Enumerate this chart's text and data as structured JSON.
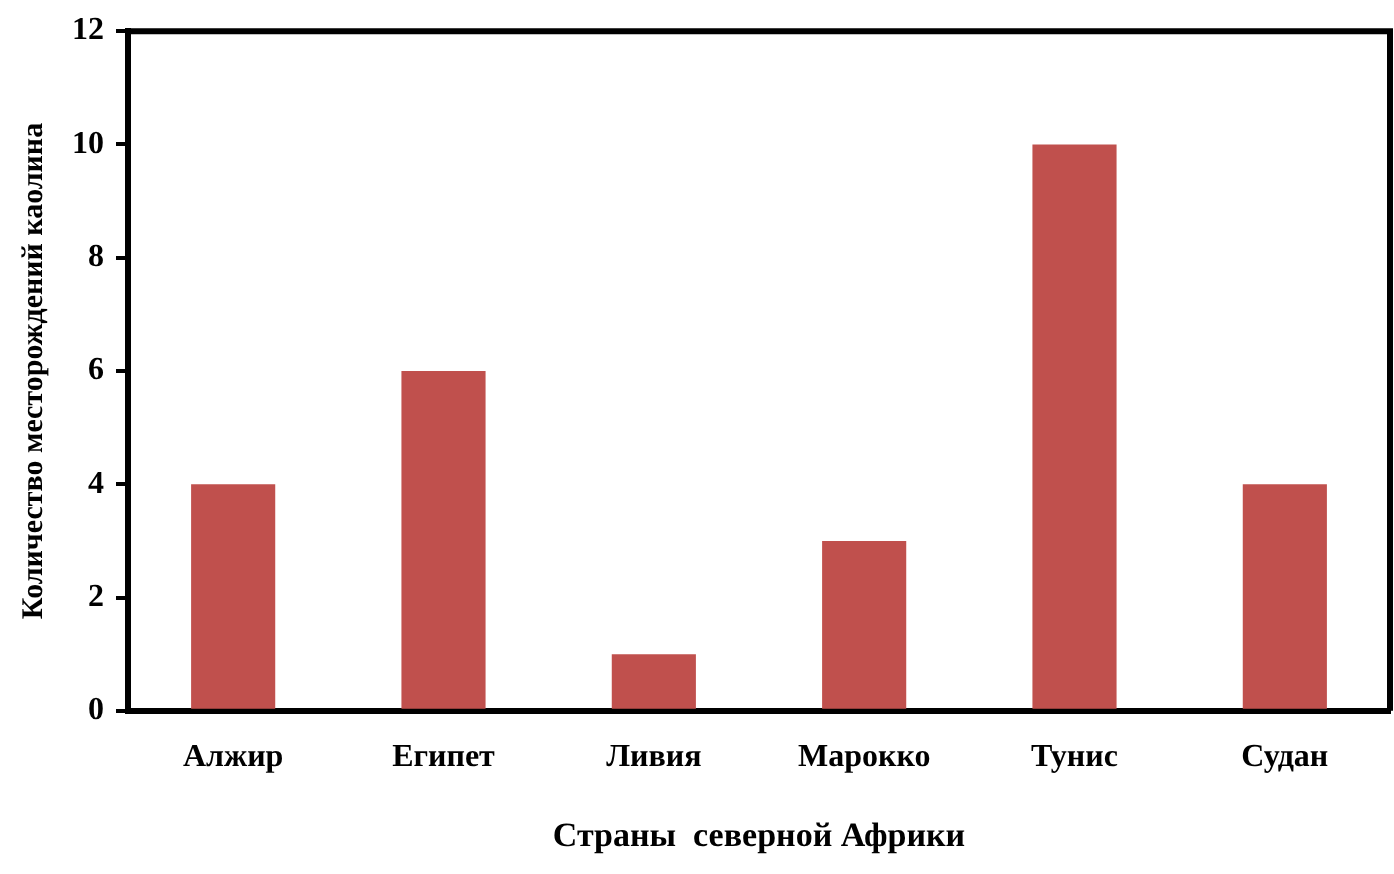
{
  "chart_data": {
    "type": "bar",
    "xlabel": "Страны  северной Африки",
    "ylabel": "Количество месторождений каолина",
    "categories": [
      "Алжир",
      "Египет",
      "Ливия",
      "Марокко",
      "Тунис",
      "Судан"
    ],
    "values": [
      4,
      6,
      1,
      3,
      10,
      4
    ],
    "color": "#c0504d",
    "ylim": [
      0,
      12
    ],
    "yticks": [
      0,
      2,
      4,
      6,
      8,
      10,
      12
    ],
    "grid": false,
    "legend": false
  }
}
